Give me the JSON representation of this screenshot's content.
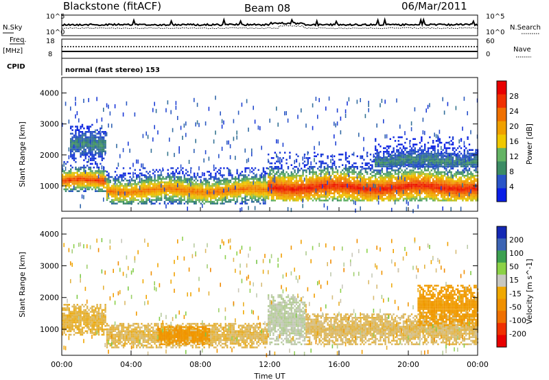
{
  "header": {
    "radar": "Blackstone (fitACF)",
    "beam": "Beam 08",
    "date": "06/Mar/2011"
  },
  "status_panels": {
    "left_labels": {
      "nsky": "N.Sky",
      "freq": "Freq.",
      "mhz": "[MHz]",
      "cpid": "CPID"
    },
    "right_labels": {
      "nsearch": "N.Search",
      "nave": "Nave"
    },
    "noise_ticks": {
      "top": "10^5",
      "bottom": "10^0"
    },
    "freq_ticks": {
      "top": "18",
      "bottom": "8"
    },
    "nave_ticks": {
      "top": "60",
      "bottom": "0"
    },
    "cpid_text": "normal (fast stereo) 153"
  },
  "x_axis": {
    "label": "Time UT",
    "ticks": [
      "00:00",
      "04:00",
      "08:00",
      "12:00",
      "16:00",
      "20:00",
      "00:00"
    ]
  },
  "colors": {
    "power": [
      "#0a1ee6",
      "#2a55c8",
      "#3c8c64",
      "#64b464",
      "#f0c800",
      "#f0a000",
      "#f07000",
      "#f03000",
      "#e80000"
    ],
    "velocity": [
      "#e80000",
      "#f03000",
      "#f07000",
      "#f09000",
      "#f0a800",
      "#c8c8c0",
      "#8cd246",
      "#3ca050",
      "#3c64b4",
      "#1428b4"
    ]
  },
  "chart_data": [
    {
      "type": "heatmap",
      "name": "Power",
      "xlabel": "",
      "ylabel": "Slant Range [km]",
      "xlim": [
        "00:00",
        "24:00"
      ],
      "ylim": [
        180,
        4500
      ],
      "yticks": [
        "1000",
        "2000",
        "3000",
        "4000"
      ],
      "colorbar": {
        "label": "Power [dB]",
        "range": [
          0,
          32
        ],
        "ticks": [
          "4",
          "8",
          "12",
          "16",
          "20",
          "24",
          "28"
        ]
      },
      "bands": [
        {
          "t_start": 0.0,
          "t_end": 2.6,
          "r_low": 800,
          "r_high": 1800,
          "peak_range": 1150,
          "peak_db": 28
        },
        {
          "t_start": 0.5,
          "t_end": 2.6,
          "r_low": 1800,
          "r_high": 3000,
          "peak_range": 2300,
          "peak_db": 8
        },
        {
          "t_start": 2.6,
          "t_end": 11.9,
          "r_low": 400,
          "r_high": 1600,
          "peak_range": 850,
          "peak_db": 24
        },
        {
          "t_start": 11.9,
          "t_end": 24.0,
          "r_low": 500,
          "r_high": 2100,
          "peak_range": 950,
          "peak_db": 30
        },
        {
          "t_start": 18.0,
          "t_end": 24.0,
          "r_low": 1600,
          "r_high": 2600,
          "peak_range": 1800,
          "peak_db": 8
        }
      ]
    },
    {
      "type": "heatmap",
      "name": "Velocity",
      "xlabel": "Time UT",
      "ylabel": "Slant Range [km]",
      "xlim": [
        "00:00",
        "24:00"
      ],
      "ylim": [
        180,
        4500
      ],
      "yticks": [
        "1000",
        "2000",
        "3000",
        "4000"
      ],
      "colorbar": {
        "label": "Velocity [m s^-1]",
        "range": [
          -250,
          250
        ],
        "ticks": [
          "200",
          "100",
          "50",
          "15",
          "-15",
          "-50",
          "-100",
          "-200"
        ]
      },
      "bands": [
        {
          "t_start": 0.0,
          "t_end": 2.6,
          "r_low": 800,
          "r_high": 1800,
          "velocity": -10
        },
        {
          "t_start": 2.6,
          "t_end": 11.9,
          "r_low": 400,
          "r_high": 1200,
          "velocity": -5
        },
        {
          "t_start": 5.5,
          "t_end": 8.5,
          "r_low": 500,
          "r_high": 1100,
          "velocity": -70
        },
        {
          "t_start": 11.9,
          "t_end": 14.0,
          "r_low": 500,
          "r_high": 2100,
          "velocity": 40
        },
        {
          "t_start": 14.0,
          "t_end": 24.0,
          "r_low": 500,
          "r_high": 1500,
          "velocity": 0
        },
        {
          "t_start": 20.5,
          "t_end": 24.0,
          "r_low": 1100,
          "r_high": 2400,
          "velocity": -60
        }
      ]
    }
  ]
}
